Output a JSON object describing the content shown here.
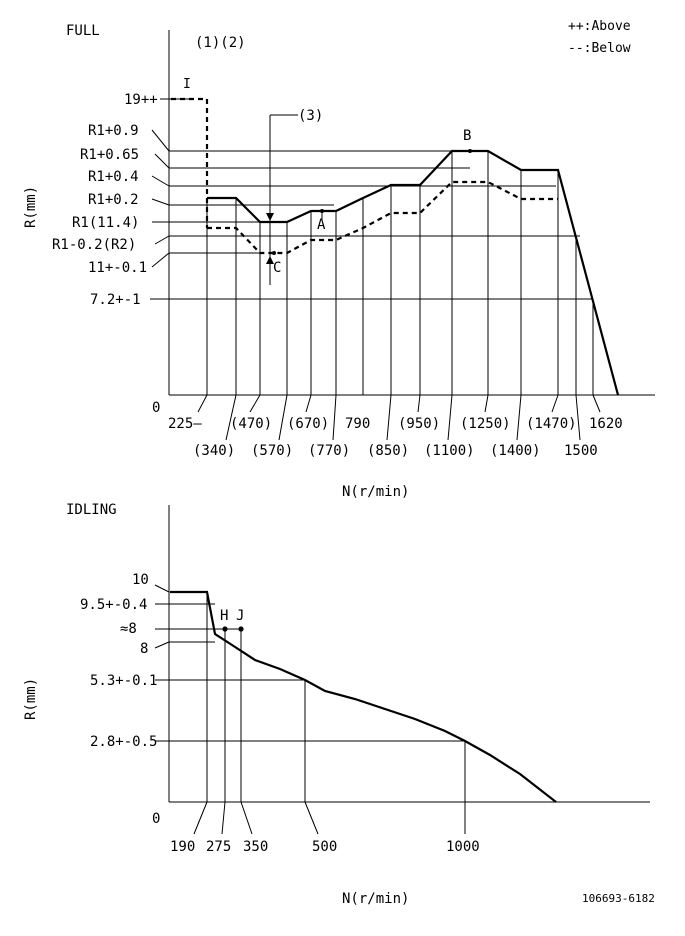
{
  "legend": {
    "above": "++:Above",
    "below": "--:Below"
  },
  "full": {
    "title": "FULL",
    "notes": "(1)(2)",
    "marker_i": "I",
    "callout3": "(3)",
    "y_axis_label": "R(mm)",
    "x_axis_label": "N(r/min)",
    "origin": "0",
    "y_labels": [
      "19++",
      "R1+0.9",
      "R1+0.65",
      "R1+0.4",
      "R1+0.2",
      "R1(11.4)",
      "R1-0.2(R2)",
      "11+-0.1",
      "7.2+-1"
    ],
    "x_labels_top": [
      "225—",
      "(470)",
      "(670)",
      "790",
      "(950)",
      "(1250)",
      "(1470)",
      "1620"
    ],
    "x_labels_bottom": [
      "(340)",
      "(570)",
      "(770)",
      "(850)",
      "(1100)",
      "(1400)",
      "1500"
    ],
    "points": {
      "A": "A",
      "B": "B",
      "C": "C"
    }
  },
  "idling": {
    "title": "IDLING",
    "y_axis_label": "R(mm)",
    "x_axis_label": "N(r/min)",
    "origin": "0",
    "y_labels": [
      "10",
      "9.5+-0.4",
      "≈8",
      "8",
      "5.3+-0.1",
      "2.8+-0.5"
    ],
    "x_labels": [
      "190",
      "275",
      "350",
      "500",
      "1000"
    ],
    "points": {
      "H": "H",
      "J": "J"
    }
  },
  "drawing_number": "106693-6182"
}
